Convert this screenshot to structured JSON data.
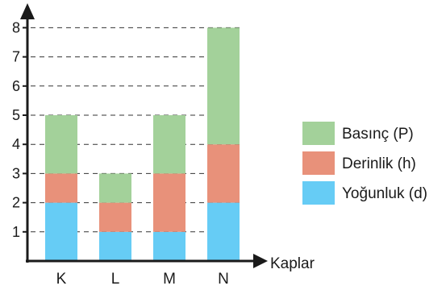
{
  "chart_data": {
    "type": "bar",
    "stacked": true,
    "categories": [
      "K",
      "L",
      "M",
      "N"
    ],
    "series": [
      {
        "name": "Yoğunluk (d)",
        "values": [
          2,
          1,
          1,
          2
        ],
        "color": "#66ccf5"
      },
      {
        "name": "Derinlik (h)",
        "values": [
          1,
          1,
          2,
          2
        ],
        "color": "#e8917a"
      },
      {
        "name": "Basınç (P)",
        "values": [
          2,
          1,
          2,
          4
        ],
        "color": "#a3d19a"
      }
    ],
    "xlabel": "Kaplar",
    "ylabel": "",
    "ylim": [
      0,
      8
    ],
    "yticks": [
      1,
      2,
      3,
      4,
      5,
      6,
      7,
      8
    ],
    "grid": "dashed horizontal",
    "legend": "right"
  }
}
